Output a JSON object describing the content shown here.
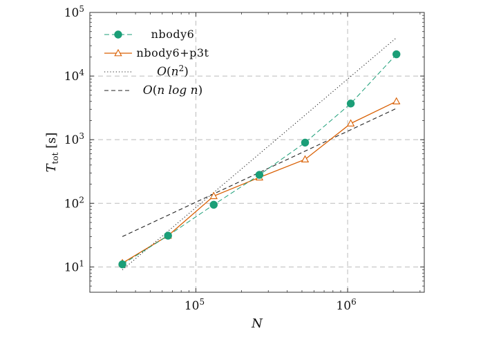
{
  "chart_data": {
    "type": "line",
    "x_scale": "log",
    "y_scale": "log",
    "xlabel_main": "N",
    "ylabel_main": "T",
    "ylabel_sub": "tot",
    "ylabel_unit": "[s]",
    "xlim": [
      20000,
      3200000
    ],
    "ylim": [
      4,
      100000
    ],
    "x_ticks": [
      {
        "value": 100000,
        "base": "10",
        "exp": "5"
      },
      {
        "value": 1000000,
        "base": "10",
        "exp": "6"
      }
    ],
    "y_ticks": [
      {
        "value": 10,
        "base": "10",
        "exp": "1"
      },
      {
        "value": 100,
        "base": "10",
        "exp": "2"
      },
      {
        "value": 1000,
        "base": "10",
        "exp": "3"
      },
      {
        "value": 10000,
        "base": "10",
        "exp": "4"
      },
      {
        "value": 100000,
        "base": "10",
        "exp": "5"
      }
    ],
    "grid": true,
    "legend_position": "top-left",
    "series": [
      {
        "name": "nbody6",
        "style": "dashed-circle",
        "color": "#1b9e77",
        "x": [
          32768,
          65536,
          131072,
          262144,
          524288,
          1048576,
          2097152
        ],
        "y": [
          11,
          31,
          95,
          280,
          900,
          3700,
          22000
        ]
      },
      {
        "name": "nbody6+p3t",
        "style": "solid-triangle",
        "color": "#d95f02",
        "x": [
          32768,
          65536,
          131072,
          262144,
          524288,
          1048576,
          2097152
        ],
        "y": [
          11.5,
          31,
          130,
          255,
          490,
          1800,
          4000
        ]
      },
      {
        "name_prefix": "O",
        "name_arg": "n",
        "name_exp": "2",
        "style": "dotted",
        "color": "#222222",
        "x": [
          32768,
          2097152
        ],
        "y": [
          9,
          40000
        ]
      },
      {
        "name_prefix": "O",
        "name_arg": "n log n",
        "style": "dashed",
        "color": "#222222",
        "x": [
          32768,
          2097152
        ],
        "y": [
          30,
          3100
        ]
      }
    ]
  }
}
